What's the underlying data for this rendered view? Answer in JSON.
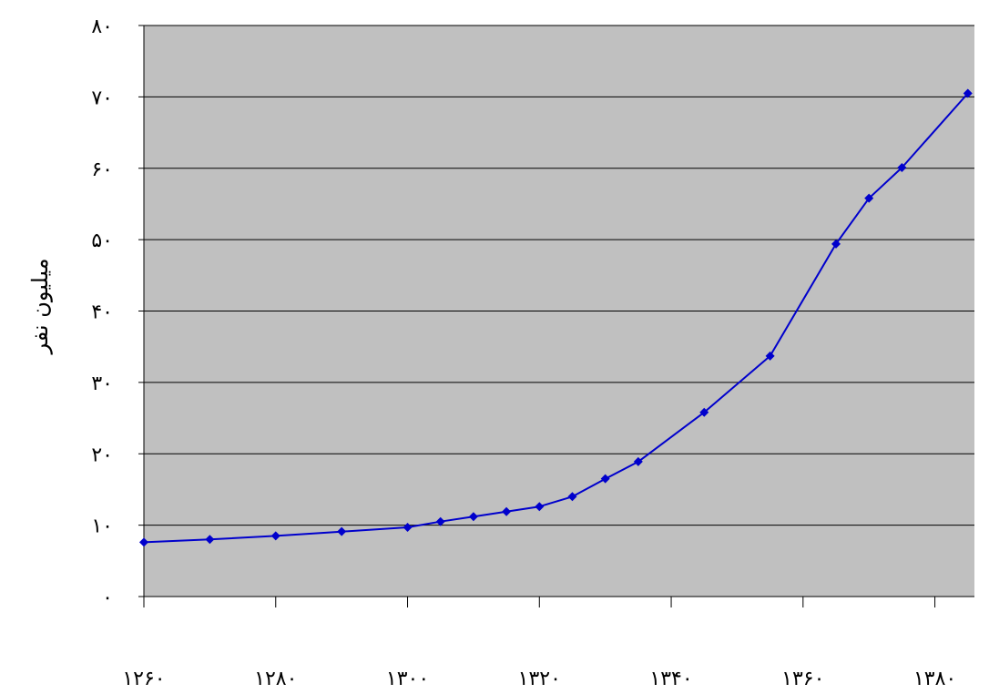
{
  "chart_data": {
    "type": "line",
    "title": "",
    "xlabel": "",
    "ylabel": "میلیون نفر",
    "xlim": [
      1260,
      1386
    ],
    "ylim": [
      0,
      80
    ],
    "x_ticks": [
      1260,
      1280,
      1300,
      1320,
      1340,
      1360,
      1380
    ],
    "x_tick_labels": [
      "۱۲۶۰",
      "۱۲۸۰",
      "۱۳۰۰",
      "۱۳۲۰",
      "۱۳۴۰",
      "۱۳۶۰",
      "۱۳۸۰"
    ],
    "y_ticks": [
      0,
      10,
      20,
      30,
      40,
      50,
      60,
      70,
      80
    ],
    "y_tick_labels": [
      "۰",
      "۱۰",
      "۲۰",
      "۳۰",
      "۴۰",
      "۵۰",
      "۶۰",
      "۷۰",
      "۸۰"
    ],
    "grid": "horizontal",
    "plot_background": "#c0c0c0",
    "series": [
      {
        "color": "#0000cc",
        "marker": "diamond",
        "points": [
          {
            "x": 1260,
            "y": 7.6
          },
          {
            "x": 1270,
            "y": 8.0
          },
          {
            "x": 1280,
            "y": 8.5
          },
          {
            "x": 1290,
            "y": 9.1
          },
          {
            "x": 1300,
            "y": 9.7
          },
          {
            "x": 1305,
            "y": 10.5
          },
          {
            "x": 1310,
            "y": 11.2
          },
          {
            "x": 1315,
            "y": 11.9
          },
          {
            "x": 1320,
            "y": 12.6
          },
          {
            "x": 1325,
            "y": 14.0
          },
          {
            "x": 1330,
            "y": 16.5
          },
          {
            "x": 1335,
            "y": 18.9
          },
          {
            "x": 1345,
            "y": 25.8
          },
          {
            "x": 1355,
            "y": 33.7
          },
          {
            "x": 1365,
            "y": 49.4
          },
          {
            "x": 1370,
            "y": 55.8
          },
          {
            "x": 1375,
            "y": 60.1
          },
          {
            "x": 1385,
            "y": 70.5
          }
        ]
      }
    ]
  }
}
